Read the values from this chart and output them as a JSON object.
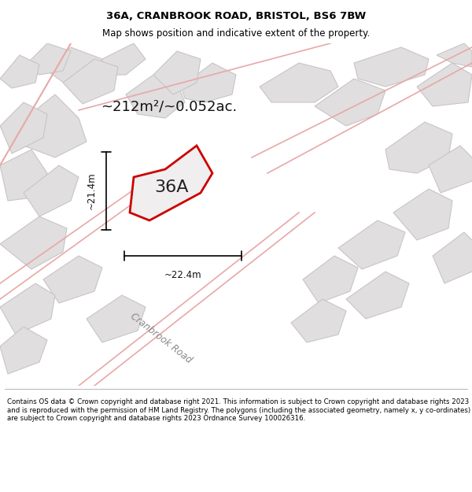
{
  "title_line1": "36A, CRANBROOK ROAD, BRISTOL, BS6 7BW",
  "title_line2": "Map shows position and indicative extent of the property.",
  "footer_text": "Contains OS data © Crown copyright and database right 2021. This information is subject to Crown copyright and database rights 2023 and is reproduced with the permission of HM Land Registry. The polygons (including the associated geometry, namely x, y co-ordinates) are subject to Crown copyright and database rights 2023 Ordnance Survey 100026316.",
  "area_label": "~212m²/~0.052ac.",
  "property_label": "36A",
  "dim_width": "~22.4m",
  "dim_height": "~21.4m",
  "road_label": "Cranbrook Road",
  "bg_color": "#f0eeee",
  "map_bg": "#f5f4f4",
  "block_color": "#e8e6e6",
  "block_outline": "#c0bfbf",
  "road_color": "#e8e4e4",
  "red_outline": "#cc0000",
  "title_bg": "#ffffff",
  "footer_bg": "#ffffff"
}
